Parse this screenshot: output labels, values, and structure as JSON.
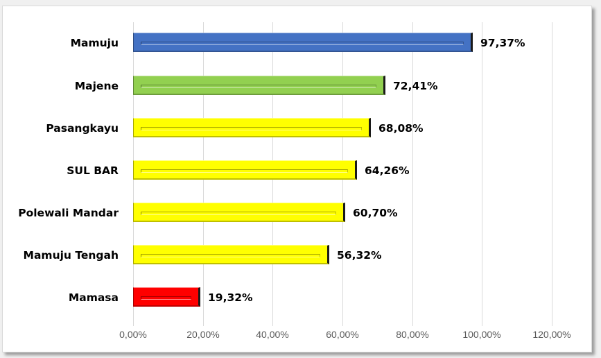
{
  "chart_data": {
    "type": "bar",
    "orientation": "horizontal",
    "title": "",
    "xlabel": "",
    "ylabel": "",
    "categories": [
      "Mamuju",
      "Majene",
      "Pasangkayu",
      "SUL BAR",
      "Polewali Mandar",
      "Mamuju Tengah",
      "Mamasa"
    ],
    "values": [
      97.37,
      72.41,
      68.08,
      64.26,
      60.7,
      56.32,
      19.32
    ],
    "value_labels": [
      "97,37%",
      "72,41%",
      "68,08%",
      "64,26%",
      "60,70%",
      "56,32%",
      "19,32%"
    ],
    "bar_colors": [
      "#4472c4",
      "#92d050",
      "#ffff00",
      "#ffff00",
      "#ffff00",
      "#ffff00",
      "#ff0000"
    ],
    "xlim": [
      0,
      120
    ],
    "x_ticks": [
      "0,00%",
      "20,00%",
      "40,00%",
      "60,00%",
      "80,00%",
      "100,00%",
      "120,00%"
    ],
    "grid": true,
    "legend": "none"
  }
}
